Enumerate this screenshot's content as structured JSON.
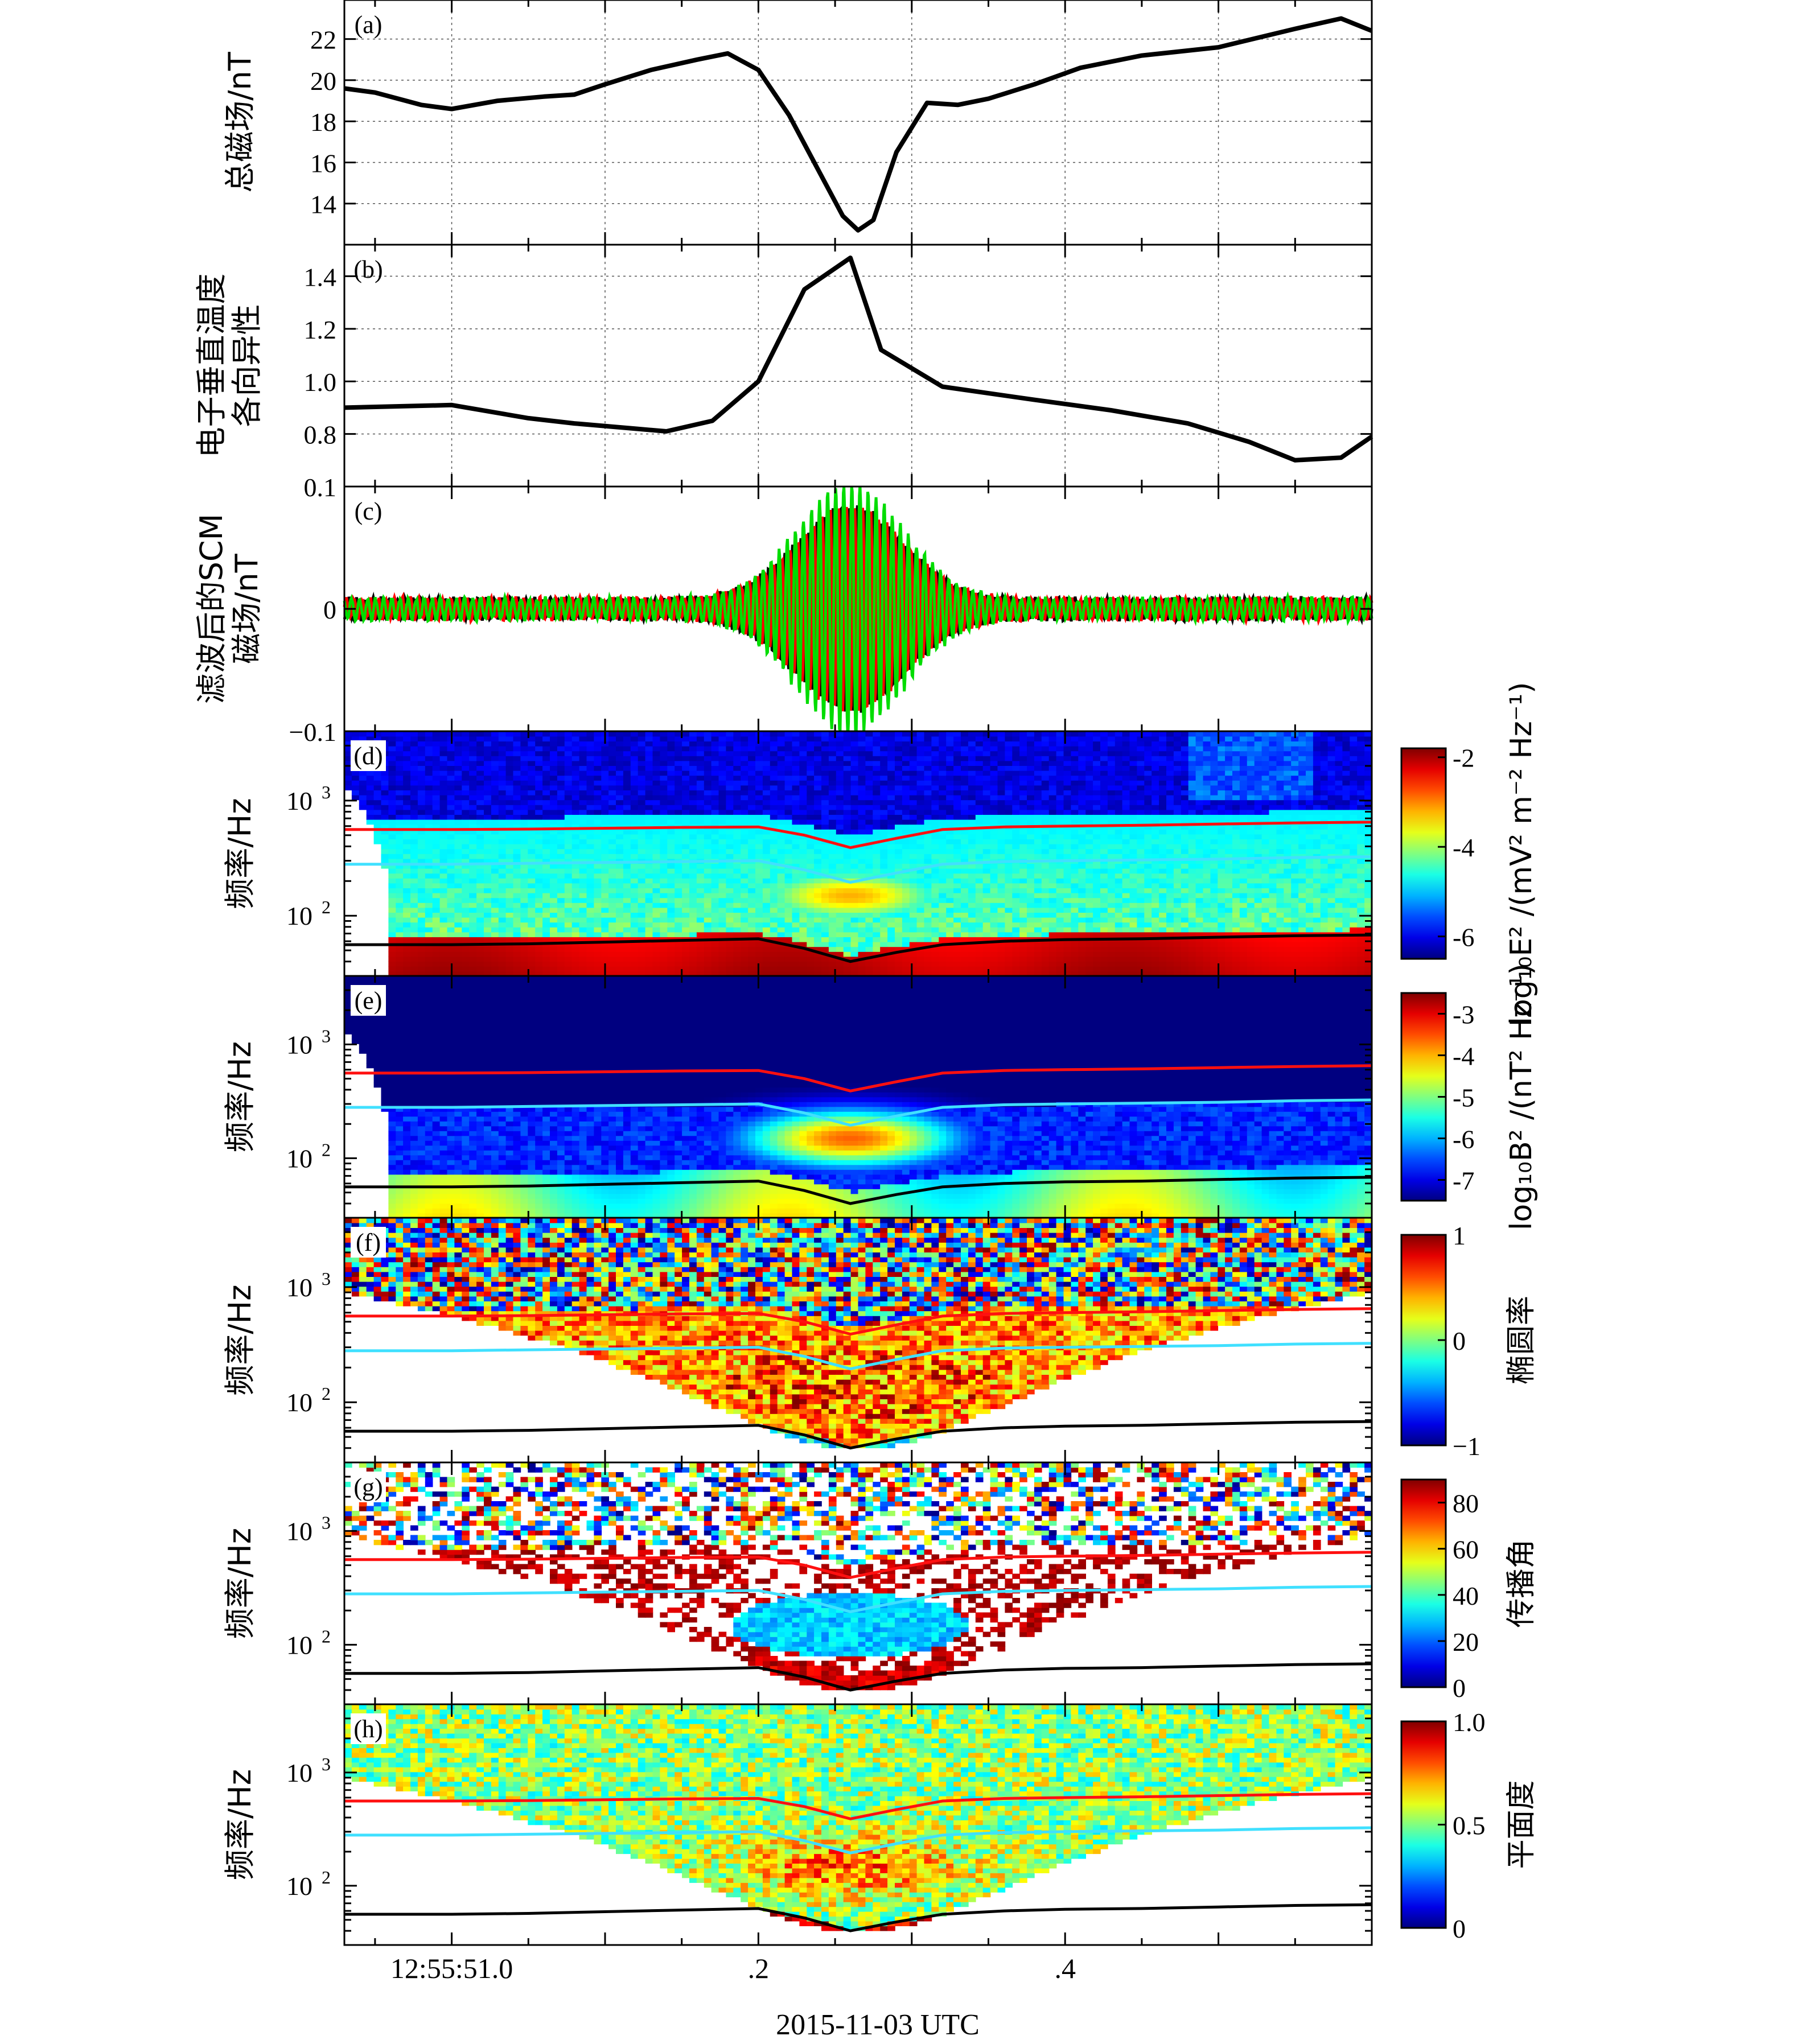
{
  "figure": {
    "xaxis": {
      "tick_labels": [
        "12:55:51.0",
        ".2",
        ".4"
      ],
      "tick_positions_s": [
        0.0,
        0.2,
        0.4
      ],
      "xlim_s": [
        -0.07,
        0.6
      ],
      "xlabel": "2015-11-03 UTC"
    }
  },
  "chart_data": [
    {
      "type": "line",
      "panel": "(a)",
      "ylabel": "总磁场/nT",
      "ylim": [
        12.0,
        23.9
      ],
      "yticks": [
        14,
        16,
        18,
        20,
        22
      ],
      "grid": true,
      "series": [
        {
          "color": "#000000",
          "x": [
            -0.07,
            -0.05,
            -0.02,
            0.0,
            0.03,
            0.06,
            0.08,
            0.1,
            0.13,
            0.16,
            0.18,
            0.2,
            0.22,
            0.24,
            0.255,
            0.265,
            0.275,
            0.29,
            0.31,
            0.33,
            0.35,
            0.38,
            0.41,
            0.45,
            0.5,
            0.55,
            0.58,
            0.6
          ],
          "y": [
            19.6,
            19.4,
            18.8,
            18.6,
            19.0,
            19.2,
            19.3,
            19.8,
            20.5,
            21.0,
            21.3,
            20.5,
            18.3,
            15.5,
            13.4,
            12.7,
            13.2,
            16.5,
            18.9,
            18.8,
            19.1,
            19.8,
            20.6,
            21.2,
            21.6,
            22.5,
            23.0,
            22.4
          ]
        }
      ]
    },
    {
      "type": "line",
      "panel": "(b)",
      "ylabel": "电子垂直温度各向异性",
      "ylim": [
        0.6,
        1.52
      ],
      "yticks": [
        0.8,
        1.0,
        1.2,
        1.4
      ],
      "grid": true,
      "series": [
        {
          "color": "#000000",
          "x": [
            -0.07,
            0.0,
            0.05,
            0.08,
            0.12,
            0.14,
            0.17,
            0.2,
            0.23,
            0.26,
            0.28,
            0.32,
            0.38,
            0.43,
            0.48,
            0.52,
            0.55,
            0.58,
            0.6
          ],
          "y": [
            0.9,
            0.91,
            0.86,
            0.84,
            0.82,
            0.81,
            0.85,
            1.0,
            1.35,
            1.47,
            1.12,
            0.98,
            0.93,
            0.89,
            0.84,
            0.77,
            0.7,
            0.71,
            0.79
          ]
        }
      ]
    },
    {
      "type": "line",
      "panel": "(c)",
      "ylabel": "滤波后的SCM磁场/nT",
      "ylim": [
        -0.1,
        0.1
      ],
      "yticks": [
        0,
        0.1,
        -0.1
      ],
      "grid": false,
      "wave_packet": {
        "center_s": 0.26,
        "width_s": 0.035,
        "peak_nT": 0.09,
        "background_nT": 0.008
      },
      "series": [
        {
          "color": "#000000"
        },
        {
          "color": "#ff0000"
        },
        {
          "color": "#00dd00"
        }
      ]
    },
    {
      "type": "heatmap",
      "panel": "(d)",
      "ylabel": "频率/Hz",
      "yscale": "log",
      "ylim": [
        30,
        4000
      ],
      "yticks": [
        100,
        1000
      ],
      "colorbar": {
        "label": "log₁₀E² /(mV² m⁻² Hz⁻¹)",
        "range": [
          -6.5,
          -1.8
        ],
        "ticks": [
          "-2",
          "-4",
          "-6"
        ],
        "tick_values": [
          -2,
          -4,
          -6
        ]
      }
    },
    {
      "type": "heatmap",
      "panel": "(e)",
      "ylabel": "频率/Hz",
      "yscale": "log",
      "ylim": [
        30,
        4000
      ],
      "yticks": [
        100,
        1000
      ],
      "colorbar": {
        "label": "log₁₀B² /(nT² Hz⁻¹)",
        "range": [
          -7.5,
          -2.5
        ],
        "ticks": [
          "-3",
          "-4",
          "-5",
          "-6",
          "-7"
        ],
        "tick_values": [
          -3,
          -4,
          -5,
          -6,
          -7
        ]
      }
    },
    {
      "type": "heatmap",
      "panel": "(f)",
      "ylabel": "频率/Hz",
      "yscale": "log",
      "ylim": [
        30,
        4000
      ],
      "yticks": [
        100,
        1000
      ],
      "colorbar": {
        "label": "椭圆率",
        "range": [
          -1,
          1
        ],
        "ticks": [
          "1",
          "0",
          "−1"
        ],
        "tick_values": [
          1,
          0,
          -1
        ]
      }
    },
    {
      "type": "heatmap",
      "panel": "(g)",
      "ylabel": "频率/Hz",
      "yscale": "log",
      "ylim": [
        30,
        4000
      ],
      "yticks": [
        100,
        1000
      ],
      "colorbar": {
        "label": "传播角",
        "range": [
          0,
          90
        ],
        "ticks": [
          "80",
          "60",
          "40",
          "20",
          "0"
        ],
        "tick_values": [
          80,
          60,
          40,
          20,
          0
        ]
      }
    },
    {
      "type": "heatmap",
      "panel": "(h)",
      "ylabel": "频率/Hz",
      "yscale": "log",
      "ylim": [
        30,
        4000
      ],
      "yticks": [
        100,
        1000
      ],
      "colorbar": {
        "label": "平面度",
        "range": [
          0,
          1
        ],
        "ticks": [
          "1.0",
          "0.5",
          "0"
        ],
        "tick_values": [
          1.0,
          0.5,
          0
        ]
      }
    }
  ],
  "overlay_lines": {
    "x": [
      -0.07,
      0.0,
      0.05,
      0.1,
      0.15,
      0.2,
      0.23,
      0.26,
      0.29,
      0.32,
      0.36,
      0.4,
      0.45,
      0.5,
      0.55,
      0.6
    ],
    "upper_red_hz": [
      560,
      560,
      565,
      575,
      585,
      590,
      500,
      390,
      470,
      560,
      590,
      600,
      610,
      625,
      640,
      650
    ],
    "upper_cyan_hz": [
      280,
      280,
      285,
      290,
      295,
      300,
      250,
      195,
      235,
      280,
      295,
      300,
      305,
      310,
      320,
      325
    ],
    "lower_black_hz": [
      56,
      56,
      57,
      59,
      61,
      63,
      52,
      40,
      48,
      56,
      60,
      62,
      63,
      65,
      67,
      68
    ]
  }
}
